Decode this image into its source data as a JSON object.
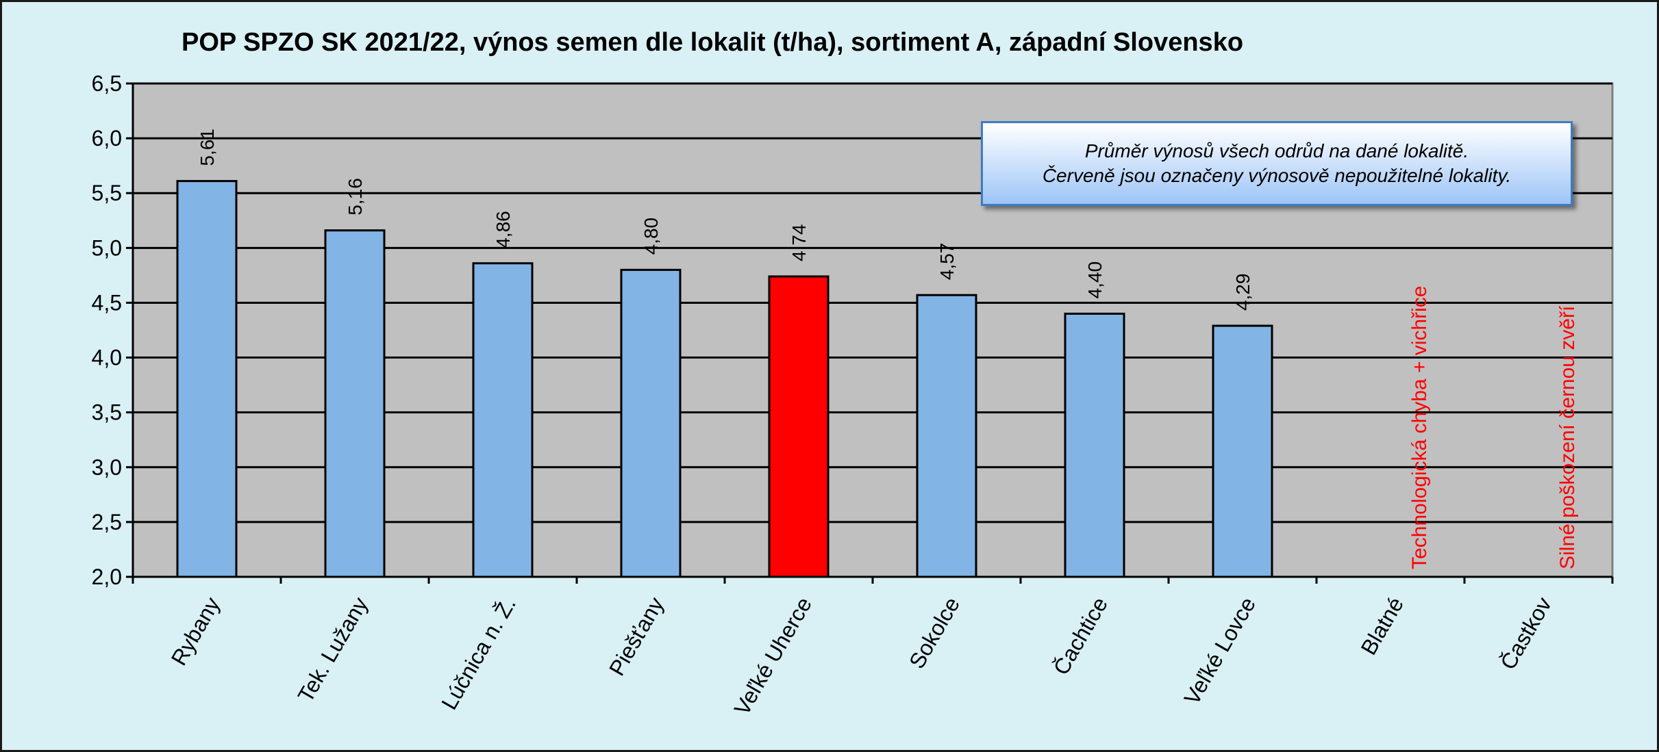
{
  "chart_data": {
    "type": "bar",
    "title": "POP SPZO SK 2021/22, výnos semen dle lokalit (t/ha), sortiment A, západní Slovensko",
    "xlabel": "",
    "ylabel": "",
    "ylim": [
      2.0,
      6.5
    ],
    "yticks": [
      "2,0",
      "2,5",
      "3,0",
      "3,5",
      "4,0",
      "4,5",
      "5,0",
      "5,5",
      "6,0",
      "6,5"
    ],
    "grid": true,
    "legend": "none",
    "categories": [
      "Rybany",
      "Tek. Lužany",
      "Lúčnica n. Ž.",
      "Piešťany",
      "Veľké Uherce",
      "Sokolce",
      "Čachtice",
      "Veľké Lovce",
      "Blatné",
      "Častkov"
    ],
    "values": [
      5.61,
      5.16,
      4.86,
      4.8,
      4.74,
      4.57,
      4.4,
      4.29,
      null,
      null
    ],
    "value_labels": [
      "5,61",
      "5,16",
      "4,86",
      "4,80",
      "4,74",
      "4,57",
      "4,40",
      "4,29",
      "",
      ""
    ],
    "highlighted": [
      false,
      false,
      false,
      false,
      true,
      false,
      false,
      false,
      false,
      false
    ],
    "notes": [
      "",
      "",
      "",
      "",
      "",
      "",
      "",
      "",
      "Technologická chyba + vichřice",
      "Silné poškození černou zvěří"
    ],
    "annotation": {
      "line1": "Průměr výnosů všech odrůd na dané lokalitě.",
      "line2": "Červeně jsou označeny výnosově nepoužitelné lokality."
    },
    "colors": {
      "background": "#d9f0f5",
      "plot_area": "#c0c0c0",
      "bar": "#82b4e6",
      "bar_highlight": "#ff0000",
      "note_text": "#ff0000"
    }
  }
}
